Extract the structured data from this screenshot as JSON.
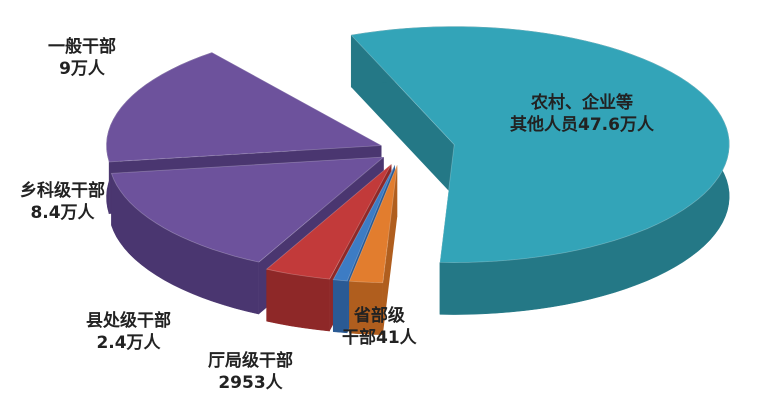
{
  "chart_data": {
    "type": "pie",
    "style": "3d-exploded",
    "slices": [
      {
        "label_line1": "农村、企业等",
        "label_line2": "其他人员47.6万人",
        "value": 476000,
        "color": "#33a4b8",
        "side": "#247886"
      },
      {
        "label_line1": "省部级",
        "label_line2": "干部41人",
        "value": 41,
        "color": "#e27d2e",
        "side": "#b05e1e"
      },
      {
        "label_line1": "",
        "label_line2": "",
        "value": 0,
        "color": "#3d7cc4",
        "side": "#2a5a94"
      },
      {
        "label_line1": "厅局级干部",
        "label_line2": "2953人",
        "value": 2953,
        "color": "#c23a3a",
        "side": "#8e2828"
      },
      {
        "label_line1": "县处级干部",
        "label_line2": "2.4万人",
        "value": 24000,
        "color": "#a6bd40",
        "side": "#7a8d2c"
      },
      {
        "label_line1": "乡科级干部",
        "label_line2": "8.4万人",
        "value": 84000,
        "color": "#6d529c",
        "side": "#4a3670"
      },
      {
        "label_line1": "一般干部",
        "label_line2": "9万人",
        "value": 90000,
        "color": "#6d529c",
        "side": "#4a3670"
      }
    ]
  }
}
